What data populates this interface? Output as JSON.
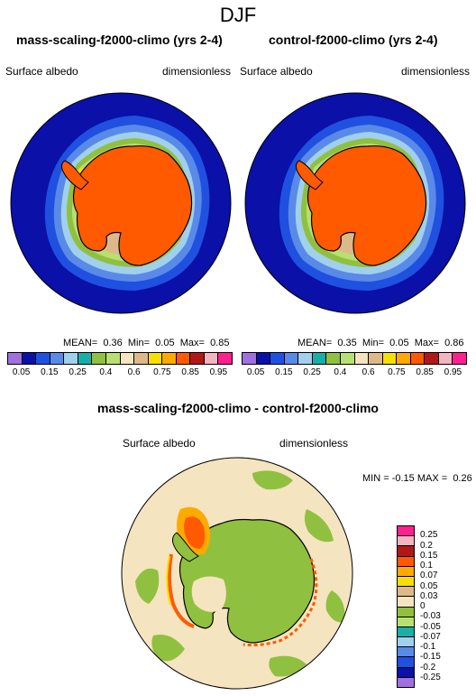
{
  "page_title": "DJF",
  "panel_left": {
    "title": "mass-scaling-f2000-climo (yrs 2-4)",
    "variable": "Surface albedo",
    "units": "dimensionless",
    "stats": {
      "mean_label": "MEAN=",
      "mean": "0.36",
      "min_label": "Min=",
      "min": "0.05",
      "max_label": "Max=",
      "max": "0.85"
    }
  },
  "panel_right": {
    "title": "control-f2000-climo (yrs 2-4)",
    "variable": "Surface albedo",
    "units": "dimensionless",
    "stats": {
      "mean_label": "MEAN=",
      "mean": "0.35",
      "min_label": "Min=",
      "min": "0.05",
      "max_label": "Max=",
      "max": "0.86"
    }
  },
  "panel_diff": {
    "title": "mass-scaling-f2000-climo - control-f2000-climo",
    "variable": "Surface albedo",
    "units": "dimensionless",
    "stats": {
      "min_label": "MIN =",
      "min": "-0.15",
      "max_label": "MAX =",
      "max": "0.26"
    }
  },
  "colorbar_top": {
    "colors": [
      "#a070e0",
      "#0a10a8",
      "#2050e0",
      "#5a8ae8",
      "#a0d0ec",
      "#1aaea8",
      "#90c040",
      "#b8e070",
      "#f5e4c0",
      "#ddb98a",
      "#f5e000",
      "#ffaa00",
      "#ff5a00",
      "#b01818",
      "#f4b4c0",
      "#ff2090"
    ],
    "ticks": [
      "0.05",
      "0.15",
      "0.25",
      "0.4",
      "0.6",
      "0.75",
      "0.85",
      "0.95"
    ],
    "tick_edges": [
      1,
      3,
      5,
      7,
      9,
      11,
      13,
      15
    ]
  },
  "colorbar_diff": {
    "colors": [
      "#ff2090",
      "#f4b4c0",
      "#b01818",
      "#ff5a00",
      "#ffaa00",
      "#f5e000",
      "#ddb98a",
      "#f5e4c0",
      "#90c040",
      "#b8e070",
      "#1aaea8",
      "#a0d0ec",
      "#5a8ae8",
      "#2050e0",
      "#0a10a8",
      "#a070e0"
    ],
    "ticks": [
      "0.25",
      "0.2",
      "0.15",
      "0.1",
      "0.07",
      "0.05",
      "0.03",
      "0",
      "-0.03",
      "-0.05",
      "-0.07",
      "-0.1",
      "-0.15",
      "-0.2",
      "-0.25"
    ]
  },
  "map_colors": {
    "ocean": "#0a10a8",
    "ice_outer": "#2050e0",
    "ice_mid": "#5a8ae8",
    "ice_light": "#a0d0ec",
    "ice_teal": "#1aaea8",
    "ice_green": "#90c040",
    "ice_lgreen": "#b8e070",
    "ice_tan": "#ddb98a",
    "ice_beige": "#f5e4c0",
    "ice_yellow": "#f5e000",
    "land": "#ff5a00",
    "diff_bg": "#f5e4c0",
    "diff_green": "#90c040",
    "diff_orange": "#ffaa00",
    "diff_red": "#ff5a00",
    "diff_yellow": "#f5e000"
  }
}
